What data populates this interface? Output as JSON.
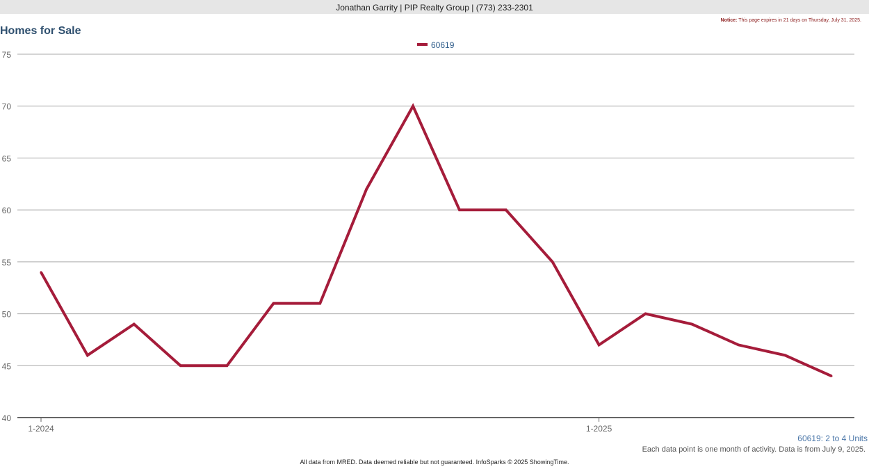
{
  "header": {
    "agent": "Jonathan Garrity | PIP Realty Group | (773) 233-2301"
  },
  "notice": {
    "label": "Notice:",
    "text": " This page expires in 21 days on Thursday, July 31, 2025."
  },
  "title": "Homes for Sale",
  "units_label": "60619: 2 to 4 Units",
  "note": "Each data point is one month of activity. Data is from July 9, 2025.",
  "footer": "All data from MRED. Data deemed reliable but not guaranteed. InfoSparks © 2025 ShowingTime.",
  "colors": {
    "series": "#a51c3a",
    "grid": "#aaaaaa",
    "axis": "#666666"
  },
  "chart_data": {
    "type": "line",
    "title": "Homes for Sale",
    "xlabel": "",
    "ylabel": "",
    "x": [
      "2024-01",
      "2024-02",
      "2024-03",
      "2024-04",
      "2024-05",
      "2024-06",
      "2024-07",
      "2024-08",
      "2024-09",
      "2024-10",
      "2024-11",
      "2024-12",
      "2025-01",
      "2025-02",
      "2025-03",
      "2025-04",
      "2025-05",
      "2025-06"
    ],
    "x_tick_labels": [
      {
        "x": "2024-01",
        "label": "1-2024"
      },
      {
        "x": "2025-01",
        "label": "1-2025"
      }
    ],
    "series": [
      {
        "name": "60619",
        "values": [
          54,
          46,
          49,
          45,
          45,
          51,
          51,
          62,
          70,
          60,
          60,
          55,
          47,
          50,
          49,
          47,
          46,
          44
        ]
      }
    ],
    "ylim": [
      40,
      75
    ],
    "y_ticks": [
      40,
      45,
      50,
      55,
      60,
      65,
      70,
      75
    ],
    "grid": true,
    "legend": "top-center"
  }
}
